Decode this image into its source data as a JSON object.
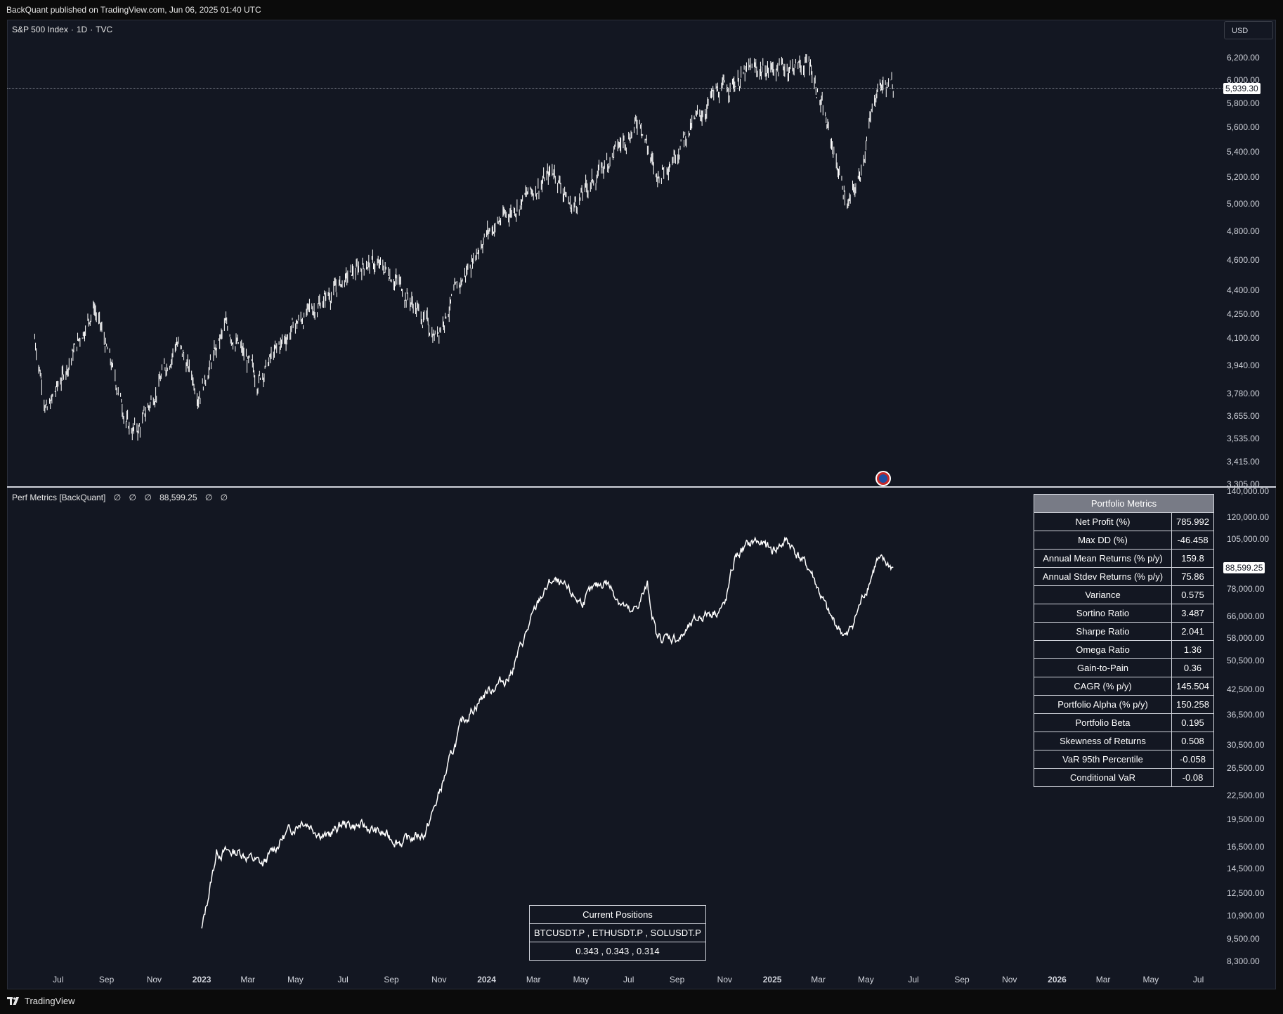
{
  "header": {
    "publisher_text": "BackQuant published on TradingView.com, Jun 06, 2025 01:40 UTC"
  },
  "main_pane": {
    "legend": {
      "symbol": "S&P 500 Index",
      "interval": "1D",
      "exchange": "TVC",
      "sep": "·"
    },
    "currency_button": "USD",
    "last_price_tag": "5,939.30",
    "price_axis": [
      "6,200.00",
      "6,000.00",
      "5,800.00",
      "5,600.00",
      "5,400.00",
      "5,200.00",
      "5,000.00",
      "4,800.00",
      "4,600.00",
      "4,400.00",
      "4,250.00",
      "4,100.00",
      "3,940.00",
      "3,780.00",
      "3,655.00",
      "3,535.00",
      "3,415.00",
      "3,305.00"
    ],
    "bar_color": "#ffffff",
    "event_icon": "us-flag-economic-event-icon"
  },
  "indicator_pane": {
    "legend": {
      "name": "Perf Metrics [BackQuant]",
      "values": [
        "∅",
        "∅",
        "∅",
        "88,599.25",
        "∅",
        "∅"
      ]
    },
    "last_value_tag": "88,599.25",
    "value_axis": [
      "140,000.00",
      "120,000.00",
      "105,000.00",
      "78,000.00",
      "66,000.00",
      "58,000.00",
      "50,500.00",
      "42,500.00",
      "36,500.00",
      "30,500.00",
      "26,500.00",
      "22,500.00",
      "19,500.00",
      "16,500.00",
      "14,500.00",
      "12,500.00",
      "10,900.00",
      "9,500.00",
      "8,300.00"
    ],
    "line_color": "#ffffff"
  },
  "portfolio_metrics": {
    "title": "Portfolio Metrics",
    "rows": [
      {
        "label": "Net Profit (%)",
        "value": "785.992"
      },
      {
        "label": "Max DD (%)",
        "value": "-46.458"
      },
      {
        "label": "Annual Mean Returns (% p/y)",
        "value": "159.8"
      },
      {
        "label": "Annual Stdev Returns (% p/y)",
        "value": "75.86"
      },
      {
        "label": "Variance",
        "value": "0.575"
      },
      {
        "label": "Sortino Ratio",
        "value": "3.487"
      },
      {
        "label": "Sharpe Ratio",
        "value": "2.041"
      },
      {
        "label": "Omega Ratio",
        "value": "1.36"
      },
      {
        "label": "Gain-to-Pain",
        "value": "0.36"
      },
      {
        "label": "CAGR (% p/y)",
        "value": "145.504"
      },
      {
        "label": "Portfolio Alpha (% p/y)",
        "value": "150.258"
      },
      {
        "label": "Portfolio Beta",
        "value": "0.195"
      },
      {
        "label": "Skewness of Returns",
        "value": "0.508"
      },
      {
        "label": "VaR 95th Percentile",
        "value": "-0.058"
      },
      {
        "label": "Conditional VaR",
        "value": "-0.08"
      }
    ]
  },
  "current_positions": {
    "title": "Current Positions",
    "symbols": "BTCUSDT.P , ETHUSDT.P , SOLUSDT.P",
    "weights": "0.343 , 0.343 , 0.314"
  },
  "time_axis": [
    {
      "label": "Jul",
      "bold": false
    },
    {
      "label": "Sep",
      "bold": false
    },
    {
      "label": "Nov",
      "bold": false
    },
    {
      "label": "2023",
      "bold": true
    },
    {
      "label": "Mar",
      "bold": false
    },
    {
      "label": "May",
      "bold": false
    },
    {
      "label": "Jul",
      "bold": false
    },
    {
      "label": "Sep",
      "bold": false
    },
    {
      "label": "Nov",
      "bold": false
    },
    {
      "label": "2024",
      "bold": true
    },
    {
      "label": "Mar",
      "bold": false
    },
    {
      "label": "May",
      "bold": false
    },
    {
      "label": "Jul",
      "bold": false
    },
    {
      "label": "Sep",
      "bold": false
    },
    {
      "label": "Nov",
      "bold": false
    },
    {
      "label": "2025",
      "bold": true
    },
    {
      "label": "Mar",
      "bold": false
    },
    {
      "label": "May",
      "bold": false
    },
    {
      "label": "Jul",
      "bold": false
    },
    {
      "label": "Sep",
      "bold": false
    },
    {
      "label": "Nov",
      "bold": false
    },
    {
      "label": "2026",
      "bold": true
    },
    {
      "label": "Mar",
      "bold": false
    },
    {
      "label": "May",
      "bold": false
    },
    {
      "label": "Jul",
      "bold": false
    }
  ],
  "footer": {
    "brand": "TradingView",
    "logo_icon": "tradingview-logo-icon"
  },
  "chart_data": [
    {
      "type": "line",
      "name_shown": "S&P 500 Index · 1D · TVC",
      "series": [
        {
          "values_approx": [
            [
              "2022-06-01",
              4100
            ],
            [
              "2022-06-17",
              3675
            ],
            [
              "2022-07-01",
              3820
            ],
            [
              "2022-08-16",
              4300
            ],
            [
              "2022-09-30",
              3585
            ],
            [
              "2022-10-12",
              3580
            ],
            [
              "2022-11-30",
              4080
            ],
            [
              "2022-12-28",
              3785
            ],
            [
              "2023-02-02",
              4180
            ],
            [
              "2023-03-13",
              3855
            ],
            [
              "2023-04-28",
              4170
            ],
            [
              "2023-06-30",
              4450
            ],
            [
              "2023-07-31",
              4590
            ],
            [
              "2023-09-01",
              4515
            ],
            [
              "2023-10-27",
              4117
            ],
            [
              "2023-12-29",
              4770
            ],
            [
              "2024-03-28",
              5254
            ],
            [
              "2024-04-19",
              4967
            ],
            [
              "2024-07-16",
              5667
            ],
            [
              "2024-08-05",
              5186
            ],
            [
              "2024-10-18",
              5864
            ],
            [
              "2024-12-06",
              6090
            ],
            [
              "2025-01-23",
              6118
            ],
            [
              "2025-02-19",
              6144
            ],
            [
              "2025-04-08",
              4982
            ],
            [
              "2025-04-21",
              5158
            ],
            [
              "2025-05-16",
              5958
            ],
            [
              "2025-06-05",
              5939
            ]
          ]
        }
      ],
      "ylim": [
        3305,
        6300
      ],
      "scale": "log"
    },
    {
      "type": "line",
      "name_shown": "Perf Metrics [BackQuant]",
      "series": [
        {
          "values_approx": [
            [
              "2023-01-01",
              10000
            ],
            [
              "2023-01-20",
              16000
            ],
            [
              "2023-02-20",
              16000
            ],
            [
              "2023-03-20",
              14800
            ],
            [
              "2023-04-15",
              17500
            ],
            [
              "2023-05-10",
              19500
            ],
            [
              "2023-06-10",
              17500
            ],
            [
              "2023-07-01",
              19000
            ],
            [
              "2023-08-01",
              18500
            ],
            [
              "2023-09-15",
              17000
            ],
            [
              "2023-10-15",
              18000
            ],
            [
              "2023-10-30",
              22000
            ],
            [
              "2023-12-01",
              35000
            ],
            [
              "2024-01-01",
              42000
            ],
            [
              "2024-01-30",
              46000
            ],
            [
              "2024-03-10",
              74000
            ],
            [
              "2024-03-25",
              82000
            ],
            [
              "2024-05-01",
              72000
            ],
            [
              "2024-06-01",
              82000
            ],
            [
              "2024-07-05",
              66000
            ],
            [
              "2024-07-25",
              79000
            ],
            [
              "2024-08-06",
              58000
            ],
            [
              "2024-09-06",
              58000
            ],
            [
              "2024-10-01",
              66000
            ],
            [
              "2024-11-01",
              70000
            ],
            [
              "2024-11-15",
              95000
            ],
            [
              "2024-12-10",
              104000
            ],
            [
              "2025-01-01",
              98000
            ],
            [
              "2025-01-20",
              104000
            ],
            [
              "2025-02-20",
              86000
            ],
            [
              "2025-03-15",
              66000
            ],
            [
              "2025-04-07",
              58000
            ],
            [
              "2025-04-25",
              72000
            ],
            [
              "2025-05-15",
              92000
            ],
            [
              "2025-06-05",
              88599
            ]
          ]
        }
      ],
      "ylim": [
        8300,
        140000
      ],
      "scale": "log"
    }
  ]
}
